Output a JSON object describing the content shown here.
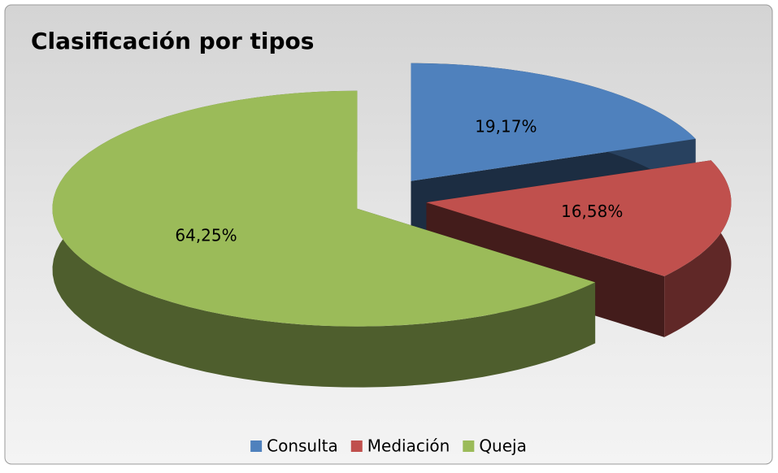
{
  "chart_data": {
    "type": "pie3d",
    "title": "Clasificación por tipos",
    "categories": [
      "Consulta",
      "Mediación",
      "Queja"
    ],
    "values": [
      19.17,
      16.58,
      64.25
    ],
    "value_labels": [
      "19,17%",
      "16,58%",
      "64,25%"
    ],
    "colors": [
      "#4f81bd",
      "#c0504d",
      "#9bbb59"
    ],
    "legend": "bottom"
  }
}
